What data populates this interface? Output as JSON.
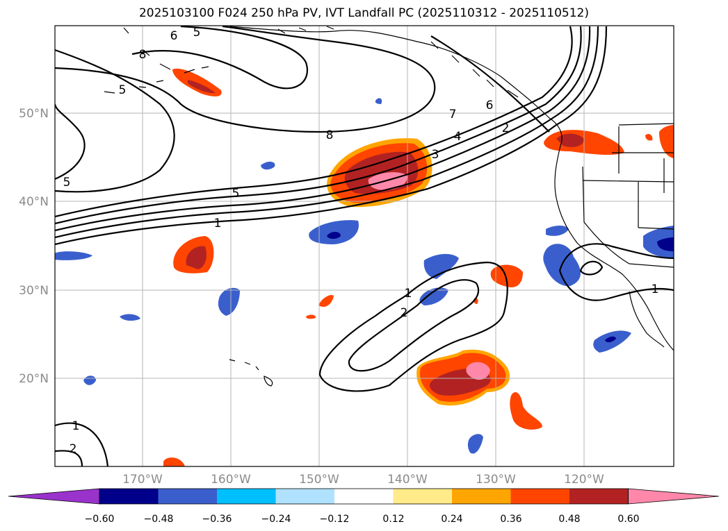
{
  "title": "2025103100 F024 250 hPa PV, IVT Landfall PC (2025110312 - 2025110512)",
  "map": {
    "lat_labels": [
      "50°N",
      "40°N",
      "30°N",
      "20°N"
    ],
    "lon_labels": [
      "170°W",
      "160°W",
      "150°W",
      "140°W",
      "130°W",
      "120°W"
    ],
    "lat_range": [
      10,
      60
    ],
    "lon_range": [
      -180,
      -110
    ],
    "gridlines": true,
    "contour_labels": [
      "1",
      "2",
      "3",
      "4",
      "5",
      "6",
      "7",
      "8",
      "5",
      "8",
      "1",
      "2",
      "1",
      "2",
      "1",
      "5",
      "6",
      "5"
    ]
  },
  "colorbar": {
    "tick_labels": [
      "−0.60",
      "−0.48",
      "−0.36",
      "−0.24",
      "−0.12",
      "0.12",
      "0.24",
      "0.36",
      "0.48",
      "0.60"
    ],
    "colors": [
      "#9933cc",
      "#00008b",
      "#3a5fcd",
      "#00bfff",
      "#b0e2ff",
      "#ffffff",
      "#ffeb8a",
      "#ffa500",
      "#ff4500",
      "#b22222",
      "#ff88aa"
    ],
    "extend": "both"
  }
}
